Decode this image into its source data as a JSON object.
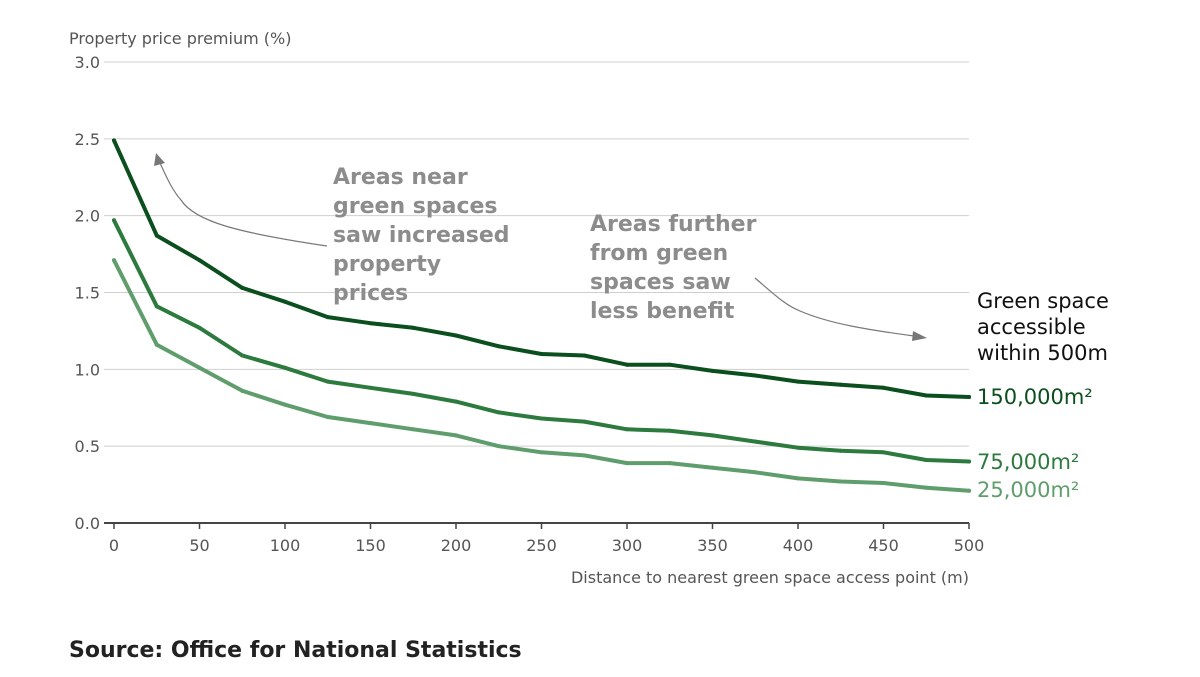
{
  "chart_data": {
    "type": "line",
    "ylabel": "Property price premium (%)",
    "xlabel": "Distance to nearest green space access point (m)",
    "ylim": [
      0,
      3.0
    ],
    "xlim": [
      0,
      500
    ],
    "yticks": [
      "0.0",
      "0.5",
      "1.0",
      "1.5",
      "2.0",
      "2.5",
      "3.0"
    ],
    "ytick_values": [
      0,
      0.5,
      1.0,
      1.5,
      2.0,
      2.5,
      3.0
    ],
    "xticks": [
      "0",
      "50",
      "100",
      "150",
      "200",
      "250",
      "300",
      "350",
      "400",
      "450",
      "500"
    ],
    "xtick_values": [
      0,
      50,
      100,
      150,
      200,
      250,
      300,
      350,
      400,
      450,
      500
    ],
    "grid": true,
    "x": [
      0,
      25,
      50,
      75,
      100,
      125,
      150,
      175,
      200,
      225,
      250,
      275,
      300,
      325,
      350,
      375,
      400,
      425,
      450,
      475,
      500
    ],
    "legend_title": [
      "Green space",
      "accessible",
      "within 500m"
    ],
    "series": [
      {
        "name": "150,000m²",
        "color": "#0b4f1e",
        "values": [
          2.49,
          1.87,
          1.71,
          1.53,
          1.44,
          1.34,
          1.3,
          1.27,
          1.22,
          1.15,
          1.1,
          1.09,
          1.03,
          1.03,
          0.99,
          0.96,
          0.92,
          0.9,
          0.88,
          0.83,
          0.82
        ]
      },
      {
        "name": "75,000m²",
        "color": "#2d7a3e",
        "values": [
          1.97,
          1.41,
          1.27,
          1.09,
          1.01,
          0.92,
          0.88,
          0.84,
          0.79,
          0.72,
          0.68,
          0.66,
          0.61,
          0.6,
          0.57,
          0.53,
          0.49,
          0.47,
          0.46,
          0.41,
          0.4
        ]
      },
      {
        "name": "25,000m²",
        "color": "#5f9e6c",
        "values": [
          1.71,
          1.16,
          1.01,
          0.86,
          0.77,
          0.69,
          0.65,
          0.61,
          0.57,
          0.5,
          0.46,
          0.44,
          0.39,
          0.39,
          0.36,
          0.33,
          0.29,
          0.27,
          0.26,
          0.23,
          0.21
        ]
      }
    ],
    "annotations": [
      {
        "lines": [
          "Areas near",
          "green spaces",
          "saw increased",
          "property",
          "prices"
        ]
      },
      {
        "lines": [
          "Areas further",
          "from green",
          "spaces saw",
          "less benefit"
        ]
      }
    ]
  },
  "source": "Source: Office for National Statistics"
}
